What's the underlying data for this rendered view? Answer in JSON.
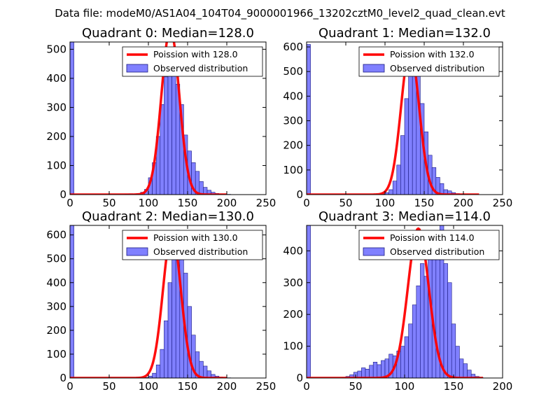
{
  "suptitle": "Data file: modeM0/AS1A04_104T04_9000001966_13202cztM0_level2_quad_clean.evt",
  "colors": {
    "hist_fill": "#8080ff",
    "hist_edge": "#1a1a80",
    "poisson_line": "#ff0000",
    "axes": "#000000"
  },
  "chart_data": [
    {
      "type": "bar",
      "title": "Quadrant 0: Median=128.0",
      "xlim": [
        0,
        250
      ],
      "ylim": [
        0,
        525
      ],
      "xticks": [
        0,
        50,
        100,
        150,
        200,
        250
      ],
      "yticks": [
        0,
        100,
        200,
        300,
        400,
        500
      ],
      "legend_location": "top-right",
      "legend": {
        "line_label": "Poission with 128.0",
        "hist_label": "Observed distribution"
      },
      "poisson_mean": 128.0,
      "poisson_peak": 570,
      "poisson_range": [
        0,
        200
      ],
      "bin_start": 0,
      "bin_width": 5,
      "hist_counts": [
        525,
        0,
        0,
        0,
        0,
        0,
        0,
        0,
        0,
        0,
        0,
        0,
        0,
        0,
        2,
        3,
        2,
        4,
        8,
        18,
        58,
        110,
        200,
        310,
        405,
        470,
        460,
        380,
        310,
        205,
        150,
        110,
        80,
        45,
        25,
        15,
        8,
        4,
        2,
        1,
        1
      ]
    },
    {
      "type": "bar",
      "title": "Quadrant 1: Median=132.0",
      "xlim": [
        0,
        250
      ],
      "ylim": [
        0,
        620
      ],
      "xticks": [
        0,
        50,
        100,
        150,
        200,
        250
      ],
      "yticks": [
        0,
        100,
        200,
        300,
        400,
        500,
        600
      ],
      "legend_location": "top-right",
      "legend": {
        "line_label": "Poission with 132.0",
        "hist_label": "Observed distribution"
      },
      "poisson_mean": 132.0,
      "poisson_peak": 590,
      "poisson_range": [
        0,
        220
      ],
      "bin_start": 0,
      "bin_width": 5,
      "hist_counts": [
        610,
        0,
        0,
        0,
        0,
        0,
        0,
        0,
        0,
        0,
        0,
        0,
        0,
        0,
        0,
        0,
        0,
        0,
        0,
        2,
        8,
        20,
        55,
        120,
        240,
        390,
        520,
        570,
        510,
        370,
        255,
        160,
        110,
        70,
        45,
        20,
        15,
        8,
        4,
        2,
        1
      ]
    },
    {
      "type": "bar",
      "title": "Quadrant 2: Median=130.0",
      "xlim": [
        0,
        250
      ],
      "ylim": [
        0,
        640
      ],
      "xticks": [
        0,
        50,
        100,
        150,
        200,
        250
      ],
      "yticks": [
        0,
        100,
        200,
        300,
        400,
        500,
        600
      ],
      "legend_location": "top-right",
      "legend": {
        "line_label": "Poission with 130.0",
        "hist_label": "Observed distribution"
      },
      "poisson_mean": 130.0,
      "poisson_peak": 610,
      "poisson_range": [
        0,
        200
      ],
      "bin_start": 0,
      "bin_width": 5,
      "hist_counts": [
        640,
        0,
        0,
        0,
        0,
        0,
        0,
        0,
        0,
        0,
        0,
        0,
        0,
        0,
        0,
        0,
        0,
        0,
        0,
        2,
        8,
        20,
        55,
        120,
        240,
        400,
        570,
        620,
        560,
        440,
        300,
        180,
        110,
        70,
        50,
        30,
        15,
        8,
        4,
        2,
        1
      ]
    },
    {
      "type": "bar",
      "title": "Quadrant 3: Median=114.0",
      "xlim": [
        0,
        200
      ],
      "ylim": [
        0,
        480
      ],
      "xticks": [
        0,
        50,
        100,
        150,
        200
      ],
      "yticks": [
        0,
        100,
        200,
        300,
        400
      ],
      "legend_location": "top-right",
      "legend": {
        "line_label": "Poission with 114.0",
        "hist_label": "Observed distribution"
      },
      "poisson_mean": 114.0,
      "poisson_peak": 470,
      "poisson_range": [
        0,
        180
      ],
      "bin_start": 0,
      "bin_width": 4,
      "hist_counts": [
        480,
        0,
        0,
        0,
        0,
        0,
        0,
        0,
        0,
        2,
        5,
        10,
        18,
        22,
        32,
        28,
        40,
        50,
        42,
        55,
        60,
        75,
        70,
        85,
        100,
        130,
        170,
        230,
        290,
        360,
        320,
        380,
        410,
        440,
        480,
        360,
        300,
        170,
        100,
        60,
        45,
        25,
        12,
        5,
        2
      ]
    }
  ]
}
